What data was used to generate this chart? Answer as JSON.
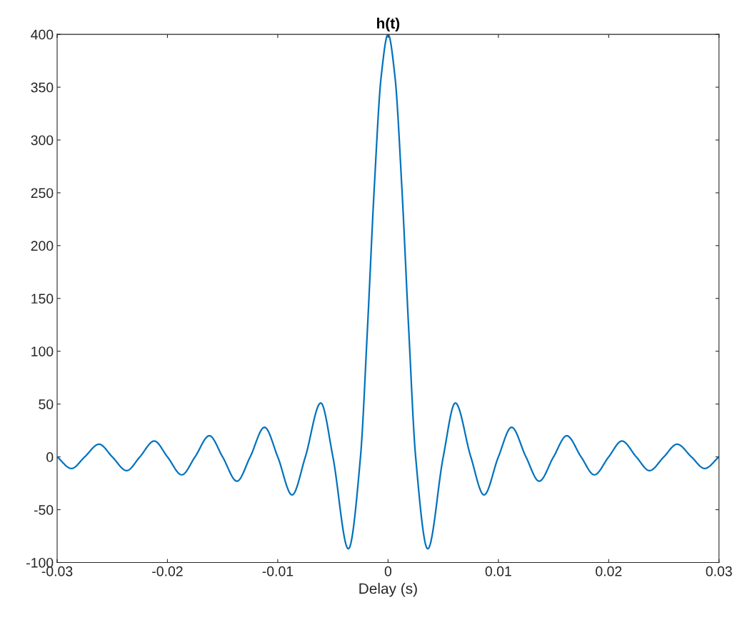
{
  "chart_data": {
    "type": "line",
    "title": "h(t)",
    "xlabel": "Delay (s)",
    "x": [
      -0.03,
      -0.0287,
      -0.0275,
      -0.0262,
      -0.025,
      -0.0237,
      -0.0225,
      -0.0212,
      -0.02,
      -0.0187,
      -0.0175,
      -0.0162,
      -0.015,
      -0.0137,
      -0.0125,
      -0.0112,
      -0.01,
      -0.0087,
      -0.0075,
      -0.0061,
      -0.005,
      -0.0036,
      -0.0025,
      -0.001875,
      -0.00125,
      -0.000625,
      0,
      0.000625,
      0.00125,
      0.001875,
      0.0025,
      0.0036,
      0.005,
      0.0061,
      0.0075,
      0.0087,
      0.01,
      0.0112,
      0.0125,
      0.0137,
      0.015,
      0.0162,
      0.0175,
      0.0187,
      0.02,
      0.0212,
      0.0225,
      0.0237,
      0.025,
      0.0262,
      0.0275,
      0.0287,
      0.03
    ],
    "series": [
      {
        "color": "#0072bd",
        "values": [
          0,
          -11,
          0,
          12,
          0,
          -13,
          0,
          15,
          0,
          -17,
          0,
          20,
          0,
          -23,
          0,
          28,
          0,
          -36,
          0,
          51,
          0,
          -87,
          0,
          120,
          255,
          360,
          400,
          360,
          255,
          120,
          0,
          -87,
          0,
          51,
          0,
          -36,
          0,
          28,
          0,
          -23,
          0,
          20,
          0,
          -17,
          0,
          15,
          0,
          -13,
          0,
          12,
          0,
          -11,
          0
        ]
      }
    ],
    "xlim": [
      -0.03,
      0.03
    ],
    "xticks": [
      -0.03,
      -0.02,
      -0.01,
      0,
      0.01,
      0.02,
      0.03
    ],
    "ylim": [
      -100,
      400
    ],
    "yticks": [
      -100,
      -50,
      0,
      50,
      100,
      150,
      200,
      250,
      300,
      350,
      400
    ],
    "grid": false,
    "marker": "none",
    "line_style": "solid"
  }
}
